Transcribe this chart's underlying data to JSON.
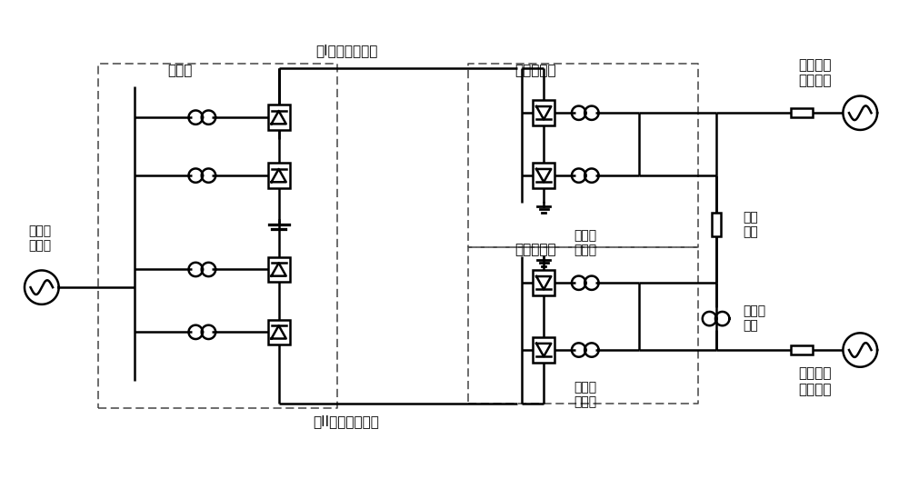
{
  "bg_color": "#ffffff",
  "line_width": 1.8,
  "labels": {
    "zhengliuzhan": "整流站",
    "ji1_line": "极I直流输电线路",
    "di1_nzhan": "第一逆变站",
    "di1_shourduan": "第一受端\n交流电网",
    "di2_nzhan": "第二逆变站",
    "di2_shourduan": "第二受端\n交流电网",
    "ji2_line": "极II直流输电线路",
    "songduan": "送端交\n流电网",
    "hulian_zuikang": "互联\n阻抗",
    "hulian_bianyaqi": "互联变\n压器",
    "di1_huanliuxian": "第一换\n流母线",
    "di2_huanliuxian": "第二换\n流母线"
  },
  "font_size": 10,
  "fig_width": 10.0,
  "fig_height": 5.27
}
